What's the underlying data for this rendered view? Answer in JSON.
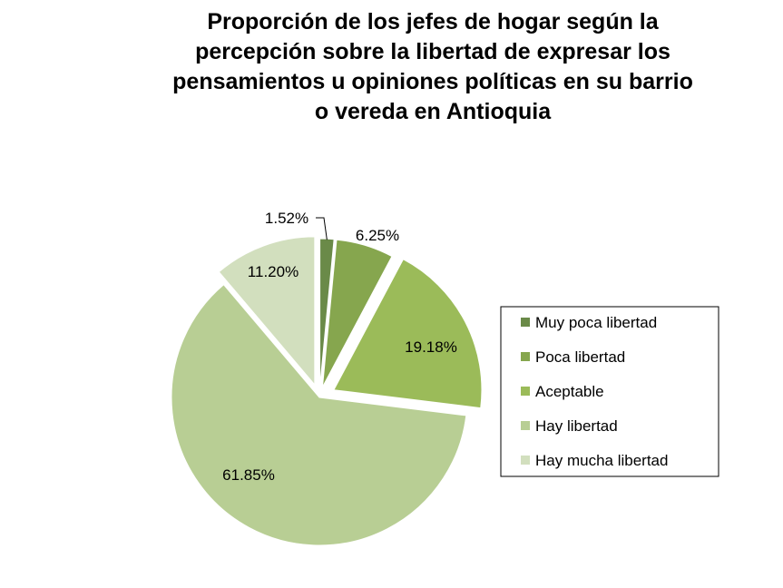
{
  "chart_data": {
    "type": "pie",
    "title_lines": [
      "Proporción de los jefes de hogar según la",
      "percepción sobre la libertad de expresar los",
      "pensamientos u opiniones políticas en su barrio",
      "o vereda en Antioquia"
    ],
    "categories": [
      "Muy poca libertad",
      "Poca libertad",
      "Aceptable",
      "Hay libertad",
      "Hay mucha libertad"
    ],
    "values": [
      1.52,
      6.25,
      19.18,
      61.85,
      11.2
    ],
    "labels": [
      "1.52%",
      "6.25%",
      "19.18%",
      "61.85%",
      "11.20%"
    ],
    "colors": [
      "#6a8a48",
      "#86a64e",
      "#9bbb59",
      "#b8ce94",
      "#d2dfbe"
    ],
    "exploded": true,
    "legend_position": "right"
  }
}
